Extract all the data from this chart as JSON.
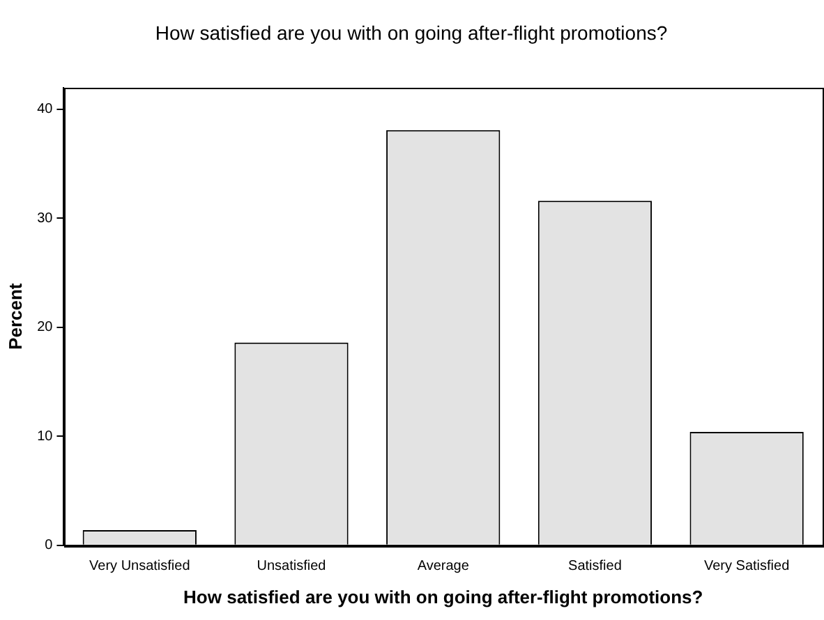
{
  "chart_data": {
    "type": "bar",
    "title": "How satisfied are you with on going after-flight promotions?",
    "xlabel": "How satisfied are you with on going after-flight promotions?",
    "ylabel": "Percent",
    "categories": [
      "Very Unsatisfied",
      "Unsatisfied",
      "Average",
      "Satisfied",
      "Very Satisfied"
    ],
    "values": [
      1.4,
      18.6,
      38.1,
      31.6,
      10.4
    ],
    "color": "#e3e3e3",
    "ylim": [
      0,
      42
    ],
    "yticks": [
      0,
      10,
      20,
      30,
      40
    ],
    "grid": false,
    "legend": false
  }
}
